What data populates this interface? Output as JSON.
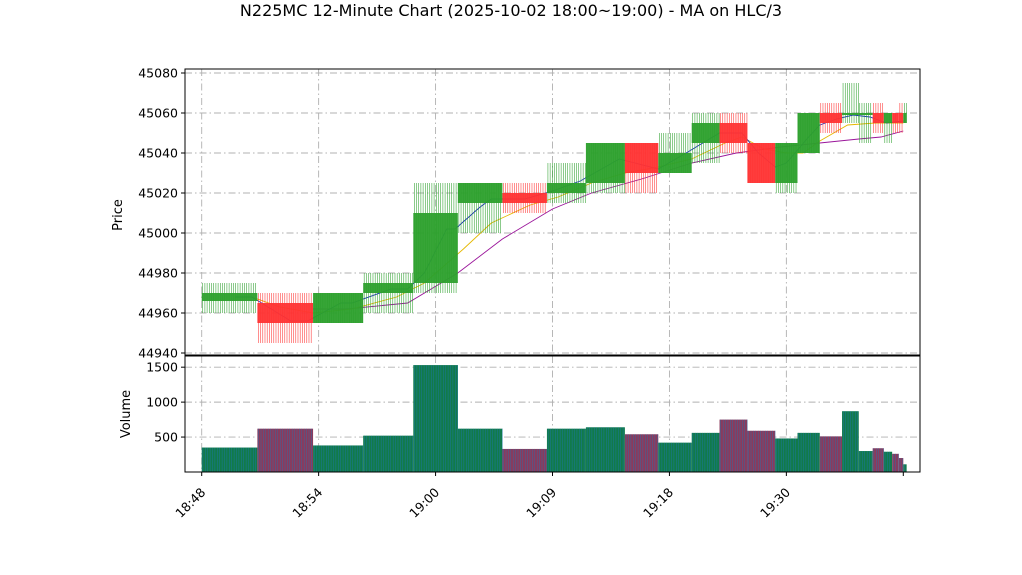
{
  "chart_data": {
    "type": "candlestick+volume",
    "title": "N225MC 12-Minute Chart (2025-10-02 18:00~19:00) - MA on HLC/3",
    "price_panel": {
      "ylabel": "Price",
      "ylim": [
        44939,
        45082
      ],
      "yticks": [
        44940,
        44960,
        44980,
        45000,
        45020,
        45040,
        45060,
        45080
      ],
      "grid": true
    },
    "volume_panel": {
      "ylabel": "Volume",
      "ylim": [
        0,
        1660
      ],
      "yticks": [
        500,
        1000,
        1500
      ],
      "grid": true
    },
    "x_time_axis": {
      "range_minutes": [
        -3,
        129
      ],
      "tick_labels": [
        "18:48",
        "18:54",
        "19:00",
        "19:09",
        "19:18",
        "19:30"
      ],
      "tick_minutes": [
        0,
        21,
        42,
        63,
        84,
        105
      ]
    },
    "up_color": "#2ca02c",
    "down_color": "#ff3333",
    "vol_up_fill": "#117a4a",
    "vol_down_fill": "#8b3a5c",
    "vol_line_color": "#1f77b4",
    "ma_fast_color": "#1a2bbf",
    "ma_mid_color": "#e5b800",
    "ma_slow_color": "#9a159a",
    "candles": [
      {
        "t0": 0,
        "t1": 10,
        "open": 44966,
        "high": 44975,
        "low": 44960,
        "close": 44970,
        "volume": 350
      },
      {
        "t0": 10,
        "t1": 20,
        "open": 44965,
        "high": 44970,
        "low": 44945,
        "close": 44955,
        "volume": 620
      },
      {
        "t0": 20,
        "t1": 29,
        "open": 44955,
        "high": 44970,
        "low": 44955,
        "close": 44970,
        "volume": 380
      },
      {
        "t0": 29,
        "t1": 38,
        "open": 44970,
        "high": 44980,
        "low": 44960,
        "close": 44975,
        "volume": 520
      },
      {
        "t0": 38,
        "t1": 46,
        "open": 44975,
        "high": 45025,
        "low": 44970,
        "close": 45010,
        "volume": 1530
      },
      {
        "t0": 46,
        "t1": 54,
        "open": 45015,
        "high": 45025,
        "low": 45000,
        "close": 45025,
        "volume": 620
      },
      {
        "t0": 54,
        "t1": 62,
        "open": 45020,
        "high": 45025,
        "low": 45010,
        "close": 45015,
        "volume": 330
      },
      {
        "t0": 62,
        "t1": 69,
        "open": 45020,
        "high": 45035,
        "low": 45015,
        "close": 45025,
        "volume": 620
      },
      {
        "t0": 69,
        "t1": 76,
        "open": 45025,
        "high": 45045,
        "low": 45020,
        "close": 45045,
        "volume": 640
      },
      {
        "t0": 76,
        "t1": 82,
        "open": 45045,
        "high": 45045,
        "low": 45020,
        "close": 45030,
        "volume": 540
      },
      {
        "t0": 82,
        "t1": 88,
        "open": 45030,
        "high": 45050,
        "low": 45030,
        "close": 45040,
        "volume": 420
      },
      {
        "t0": 88,
        "t1": 93,
        "open": 45045,
        "high": 45060,
        "low": 45035,
        "close": 45055,
        "volume": 560
      },
      {
        "t0": 93,
        "t1": 98,
        "open": 45055,
        "high": 45060,
        "low": 45040,
        "close": 45045,
        "volume": 750
      },
      {
        "t0": 98,
        "t1": 103,
        "open": 45045,
        "high": 45045,
        "low": 45025,
        "close": 45025,
        "volume": 590
      },
      {
        "t0": 103,
        "t1": 107,
        "open": 45025,
        "high": 45045,
        "low": 45020,
        "close": 45045,
        "volume": 480
      },
      {
        "t0": 107,
        "t1": 111,
        "open": 45040,
        "high": 45060,
        "low": 45040,
        "close": 45060,
        "volume": 560
      },
      {
        "t0": 111,
        "t1": 115,
        "open": 45060,
        "high": 45065,
        "low": 45050,
        "close": 45055,
        "volume": 510
      },
      {
        "t0": 115,
        "t1": 118,
        "open": 45060,
        "high": 45075,
        "low": 45055,
        "close": 45060,
        "volume": 870
      },
      {
        "t0": 118,
        "t1": 120.5,
        "open": 45060,
        "high": 45065,
        "low": 45045,
        "close": 45060,
        "volume": 300
      },
      {
        "t0": 120.5,
        "t1": 122.5,
        "open": 45060,
        "high": 45065,
        "low": 45050,
        "close": 45055,
        "volume": 340
      },
      {
        "t0": 122.5,
        "t1": 124,
        "open": 45055,
        "high": 45060,
        "low": 45045,
        "close": 45060,
        "volume": 290
      },
      {
        "t0": 124,
        "t1": 125.2,
        "open": 45060,
        "high": 45060,
        "low": 45050,
        "close": 45055,
        "volume": 260
      },
      {
        "t0": 125.2,
        "t1": 126,
        "open": 45060,
        "high": 45065,
        "low": 45050,
        "close": 45055,
        "volume": 200
      },
      {
        "t0": 126,
        "t1": 126.6,
        "open": 45055,
        "high": 45065,
        "low": 45055,
        "close": 45060,
        "volume": 110
      }
    ],
    "ma_fast": [
      [
        6,
        44968
      ],
      [
        9,
        44968
      ],
      [
        16,
        44956
      ],
      [
        19,
        44956
      ],
      [
        25,
        44965
      ],
      [
        27,
        44965
      ],
      [
        34,
        44972
      ],
      [
        37,
        44972
      ],
      [
        40,
        44980
      ],
      [
        44,
        45002
      ],
      [
        45.5,
        45002
      ],
      [
        50,
        45013
      ],
      [
        52,
        45017
      ],
      [
        58,
        45017
      ],
      [
        63,
        45021
      ],
      [
        68,
        45026
      ],
      [
        75,
        45037
      ],
      [
        82,
        45032
      ],
      [
        87,
        45040
      ],
      [
        93,
        45050
      ],
      [
        97,
        45050
      ],
      [
        100,
        45040
      ],
      [
        103,
        45033
      ],
      [
        105,
        45035
      ],
      [
        109,
        45048
      ],
      [
        111,
        45054
      ],
      [
        114,
        45057
      ],
      [
        117,
        45059
      ],
      [
        120,
        45058
      ],
      [
        123,
        45055
      ],
      [
        126,
        45056
      ]
    ],
    "ma_mid": [
      [
        9,
        44968
      ],
      [
        14,
        44963
      ],
      [
        20,
        44960
      ],
      [
        27,
        44962
      ],
      [
        35,
        44968
      ],
      [
        40,
        44975
      ],
      [
        47,
        44992
      ],
      [
        52,
        45005
      ],
      [
        59,
        45014
      ],
      [
        64,
        45018
      ],
      [
        70,
        45025
      ],
      [
        76,
        45030
      ],
      [
        82,
        45033
      ],
      [
        88,
        45037
      ],
      [
        94,
        45045
      ],
      [
        97,
        45048
      ],
      [
        101,
        45042
      ],
      [
        105,
        45040
      ],
      [
        108,
        45040
      ],
      [
        111,
        45046
      ],
      [
        116,
        45054
      ],
      [
        121,
        45055
      ],
      [
        126,
        45055
      ]
    ],
    "ma_slow": [
      [
        20,
        44962
      ],
      [
        26,
        44962
      ],
      [
        37,
        44965
      ],
      [
        46,
        44980
      ],
      [
        54,
        44997
      ],
      [
        63,
        45012
      ],
      [
        70,
        45020
      ],
      [
        79,
        45027
      ],
      [
        88,
        45035
      ],
      [
        96,
        45040
      ],
      [
        104,
        45043
      ],
      [
        111,
        45045
      ],
      [
        118,
        45047
      ],
      [
        122,
        45048
      ],
      [
        126,
        45051
      ]
    ]
  }
}
